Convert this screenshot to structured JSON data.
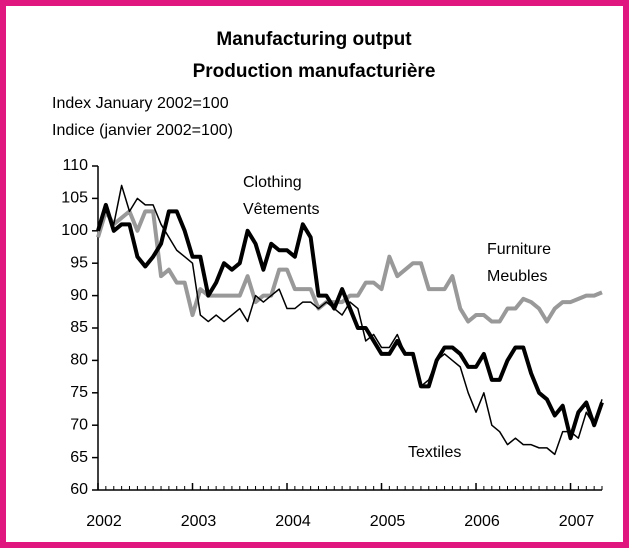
{
  "chart_data": {
    "type": "line",
    "title": [
      "Manufacturing output",
      "Production manufacturière"
    ],
    "y_label": [
      "Index January 2002=100",
      "Indice (janvier 2002=100)"
    ],
    "x": [
      2002,
      2002.083,
      2002.167,
      2002.25,
      2002.333,
      2002.417,
      2002.5,
      2002.583,
      2002.667,
      2002.75,
      2002.833,
      2002.917,
      2003,
      2003.083,
      2003.167,
      2003.25,
      2003.333,
      2003.417,
      2003.5,
      2003.583,
      2003.667,
      2003.75,
      2003.833,
      2003.917,
      2004,
      2004.083,
      2004.167,
      2004.25,
      2004.333,
      2004.417,
      2004.5,
      2004.583,
      2004.667,
      2004.75,
      2004.833,
      2004.917,
      2005,
      2005.083,
      2005.167,
      2005.25,
      2005.333,
      2005.417,
      2005.5,
      2005.583,
      2005.667,
      2005.75,
      2005.833,
      2005.917,
      2006,
      2006.083,
      2006.167,
      2006.25,
      2006.333,
      2006.417,
      2006.5,
      2006.583,
      2006.667,
      2006.75,
      2006.833,
      2006.917,
      2007,
      2007.083,
      2007.167,
      2007.25,
      2007.333
    ],
    "series": [
      {
        "name": "Clothing",
        "alt_name": "Vêtements",
        "color": "#000000",
        "width": 4,
        "values": [
          100,
          104,
          100,
          101,
          101,
          96,
          94.5,
          96,
          98,
          103,
          103,
          100,
          96,
          96,
          90,
          92,
          95,
          94,
          95,
          100,
          98,
          94,
          98,
          97,
          97,
          96,
          101,
          99,
          90,
          90,
          88,
          91,
          88,
          85,
          85,
          83,
          81,
          81,
          83,
          81,
          81,
          76,
          76,
          80,
          82,
          82,
          81,
          79,
          79,
          81,
          77,
          77,
          80,
          82,
          82,
          78,
          75,
          74,
          71.5,
          73,
          68,
          72,
          73.5,
          70,
          73.5
        ]
      },
      {
        "name": "Textiles",
        "color": "#000000",
        "width": 1.5,
        "values": [
          101,
          103,
          101,
          107,
          103,
          105,
          104,
          104,
          101,
          99,
          97,
          96,
          95,
          87,
          86,
          87,
          86,
          87,
          88,
          86,
          90,
          89,
          90,
          91,
          88,
          88,
          89,
          89,
          88,
          89,
          88,
          87,
          89,
          88,
          83,
          84,
          82,
          82,
          84,
          81,
          81,
          76,
          77,
          80,
          81,
          80,
          79,
          75,
          72,
          75,
          70,
          69,
          67,
          68,
          67,
          67,
          66.5,
          66.5,
          65.5,
          69,
          69,
          68,
          72,
          70,
          74
        ]
      },
      {
        "name": "Furniture",
        "alt_name": "Meubles",
        "color": "#999999",
        "width": 4,
        "values": [
          99,
          103,
          101,
          102,
          103,
          100,
          103,
          103,
          93,
          94,
          92,
          92,
          87,
          91,
          90,
          90,
          90,
          90,
          90,
          93,
          89,
          90,
          90,
          94,
          94,
          91,
          91,
          91,
          88,
          89,
          89,
          89,
          90,
          90,
          92,
          92,
          91,
          96,
          93,
          94,
          95,
          95,
          91,
          91,
          91,
          93,
          88,
          86,
          87,
          87,
          86,
          86,
          88,
          88,
          89.5,
          89,
          88,
          86,
          88,
          89,
          89,
          89.5,
          90,
          90,
          90.5
        ]
      }
    ],
    "xlim": [
      2002,
      2007.333
    ],
    "xticks": [
      2002,
      2003,
      2004,
      2005,
      2006,
      2007
    ],
    "ylim": [
      60,
      110
    ],
    "yticks": [
      60,
      65,
      70,
      75,
      80,
      85,
      90,
      95,
      100,
      105,
      110
    ]
  }
}
